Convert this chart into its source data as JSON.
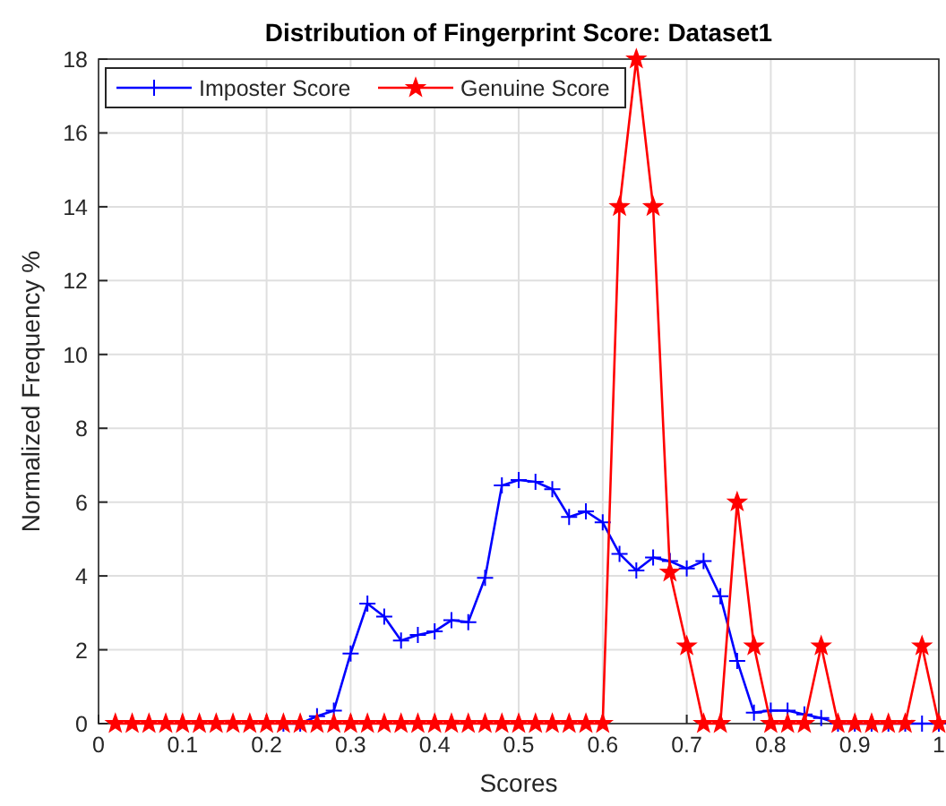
{
  "chart_data": {
    "type": "line",
    "title": "Distribution of Fingerprint Score: Dataset1",
    "xlabel": "Scores",
    "ylabel": "Normalized Frequency %",
    "x": [
      0.02,
      0.04,
      0.06,
      0.08,
      0.1,
      0.12,
      0.14,
      0.16,
      0.18,
      0.2,
      0.22,
      0.24,
      0.26,
      0.28,
      0.3,
      0.32,
      0.34,
      0.36,
      0.38,
      0.4,
      0.42,
      0.44,
      0.46,
      0.48,
      0.5,
      0.52,
      0.54,
      0.56,
      0.58,
      0.6,
      0.62,
      0.64,
      0.66,
      0.68,
      0.7,
      0.72,
      0.74,
      0.76,
      0.78,
      0.8,
      0.82,
      0.84,
      0.86,
      0.88,
      0.9,
      0.92,
      0.94,
      0.96,
      0.98,
      1.0
    ],
    "series": [
      {
        "name": "Imposter Score",
        "color": "#0000ff",
        "marker": "cross",
        "values": [
          null,
          null,
          null,
          null,
          null,
          null,
          null,
          null,
          null,
          null,
          0,
          0,
          0.2,
          0.35,
          1.9,
          3.25,
          2.9,
          2.25,
          2.4,
          2.5,
          2.8,
          2.75,
          3.95,
          6.45,
          6.6,
          6.55,
          6.35,
          5.6,
          5.75,
          5.45,
          4.6,
          4.15,
          4.5,
          4.4,
          4.2,
          4.4,
          3.45,
          1.7,
          0.3,
          0.35,
          0.35,
          0.25,
          0.15,
          0,
          0,
          0,
          0,
          0,
          0,
          0
        ]
      },
      {
        "name": "Genuine Score",
        "color": "#ff0000",
        "marker": "star",
        "values": [
          0,
          0,
          0,
          0,
          0,
          0,
          0,
          0,
          0,
          0,
          0,
          0,
          0,
          0,
          0,
          0,
          0,
          0,
          0,
          0,
          0,
          0,
          0,
          0,
          0,
          0,
          0,
          0,
          0,
          0,
          14,
          18,
          14,
          4.1,
          2.1,
          0,
          0,
          6,
          2.1,
          0,
          0,
          0,
          2.1,
          0,
          0,
          0,
          0,
          0,
          2.1,
          0
        ]
      }
    ],
    "xlim": [
      0,
      1
    ],
    "xticks": [
      0,
      0.1,
      0.2,
      0.3,
      0.4,
      0.5,
      0.6,
      0.7,
      0.8,
      0.9,
      1
    ],
    "ylim": [
      0,
      18
    ],
    "yticks": [
      0,
      2,
      4,
      6,
      8,
      10,
      12,
      14,
      16,
      18
    ],
    "grid": true,
    "legend": "top left",
    "line_style": "solid"
  }
}
